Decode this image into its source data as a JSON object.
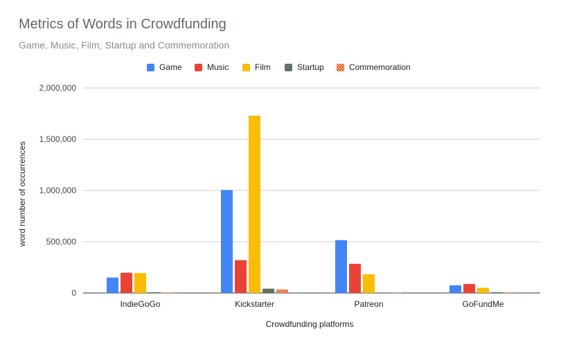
{
  "title": "Metrics of Words in Crowdfunding",
  "subtitle": "Game, Music, Film, Startup and Commemoration",
  "chart_data": {
    "type": "bar",
    "title": "Metrics of Words in Crowdfunding",
    "subtitle": "Game, Music, Film, Startup and Commemoration",
    "xlabel": "Crowdfunding platforms",
    "ylabel": "word number of occurrences",
    "categories": [
      "IndieGoGo",
      "Kickstarter",
      "Patreon",
      "GoFundMe"
    ],
    "series": [
      {
        "name": "Game",
        "color": "#4285f4",
        "values": [
          150000,
          1005000,
          515000,
          75000
        ]
      },
      {
        "name": "Music",
        "color": "#ea4335",
        "values": [
          198000,
          320000,
          285000,
          88000
        ]
      },
      {
        "name": "Film",
        "color": "#fbbc04",
        "values": [
          195000,
          1730000,
          183000,
          50000
        ]
      },
      {
        "name": "Startup",
        "color": "#5f7463",
        "values": [
          8000,
          42000,
          2000,
          8000
        ]
      },
      {
        "name": "Commemoration",
        "color": "#e8622d",
        "pattern": "checker",
        "values": [
          1000,
          35000,
          1000,
          6000
        ]
      }
    ],
    "ylim": [
      0,
      2000000
    ],
    "yticks": [
      0,
      500000,
      1000000,
      1500000,
      2000000
    ],
    "ytick_labels": [
      "0",
      "500,000",
      "1,000,000",
      "1,500,000",
      "2,000,000"
    ],
    "grid": true,
    "legend_position": "top"
  }
}
